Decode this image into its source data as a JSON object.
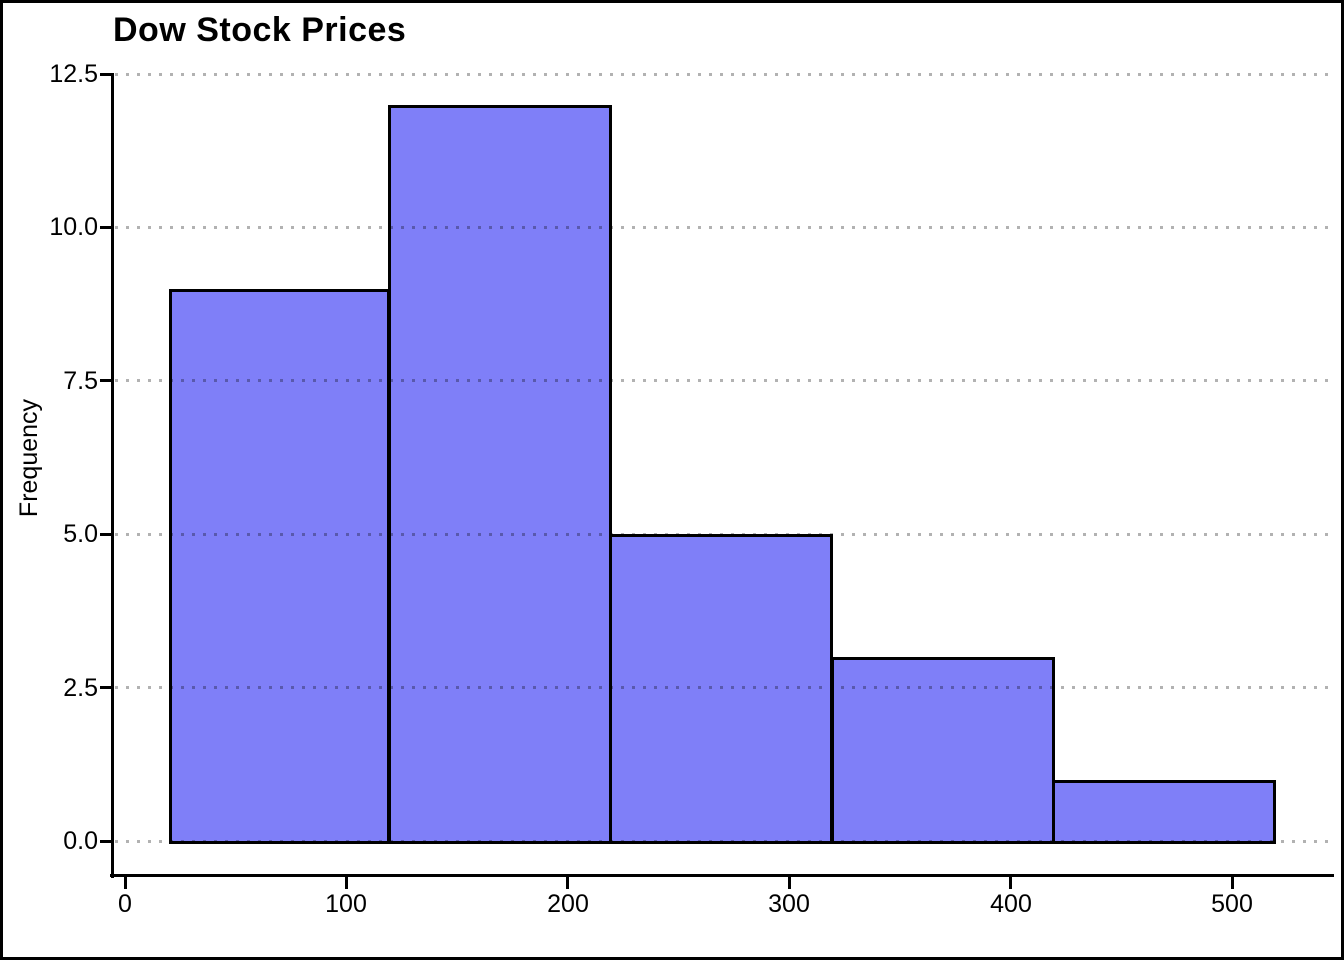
{
  "chart_data": {
    "type": "bar",
    "subtype": "histogram",
    "title": "Dow Stock Prices",
    "xlabel": "",
    "ylabel": "Frequency",
    "bin_edges": [
      20,
      120,
      220,
      320,
      420,
      520
    ],
    "counts": [
      9,
      12,
      5,
      3,
      1
    ],
    "x_tick_values": [
      0,
      100,
      200,
      300,
      400,
      500
    ],
    "x_tick_labels": [
      "0",
      "100",
      "200",
      "300",
      "400",
      "500"
    ],
    "y_tick_values": [
      0,
      2.5,
      5,
      7.5,
      10,
      12.5
    ],
    "y_tick_labels": [
      "0.0",
      "2.5",
      "5.0",
      "7.5",
      "10.0",
      "12.5"
    ],
    "xlim": [
      -5,
      545
    ],
    "ylim": [
      0,
      12.5
    ],
    "grid": "horizontal-dotted",
    "legend": "none",
    "colors": {
      "bar_fill": "#7f7ff8",
      "bar_edge": "#000000",
      "grid": "#b3b3b3",
      "axis": "#000000",
      "text": "#000000",
      "frame": "#000000",
      "background": "#ffffff"
    }
  }
}
